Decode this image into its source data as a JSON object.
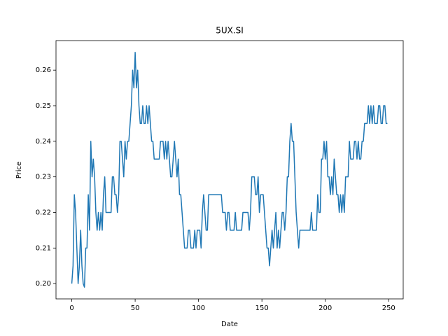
{
  "chart_data": {
    "type": "line",
    "title": "5UX.SI",
    "xlabel": "Date",
    "ylabel": "Price",
    "x": [
      0,
      1,
      2,
      3,
      4,
      5,
      6,
      7,
      8,
      9,
      10,
      11,
      12,
      13,
      14,
      15,
      16,
      17,
      18,
      19,
      20,
      21,
      22,
      23,
      24,
      25,
      26,
      27,
      28,
      29,
      30,
      31,
      32,
      33,
      34,
      35,
      36,
      37,
      38,
      39,
      40,
      41,
      42,
      43,
      44,
      45,
      46,
      47,
      48,
      49,
      50,
      51,
      52,
      53,
      54,
      55,
      56,
      57,
      58,
      59,
      60,
      61,
      62,
      63,
      64,
      65,
      66,
      67,
      68,
      69,
      70,
      71,
      72,
      73,
      74,
      75,
      76,
      77,
      78,
      79,
      80,
      81,
      82,
      83,
      84,
      85,
      86,
      87,
      88,
      89,
      90,
      91,
      92,
      93,
      94,
      95,
      96,
      97,
      98,
      99,
      100,
      101,
      102,
      103,
      104,
      105,
      106,
      107,
      108,
      109,
      110,
      111,
      112,
      113,
      114,
      115,
      116,
      117,
      118,
      119,
      120,
      121,
      122,
      123,
      124,
      125,
      126,
      127,
      128,
      129,
      130,
      131,
      132,
      133,
      134,
      135,
      136,
      137,
      138,
      139,
      140,
      141,
      142,
      143,
      144,
      145,
      146,
      147,
      148,
      149,
      150,
      151,
      152,
      153,
      154,
      155,
      156,
      157,
      158,
      159,
      160,
      161,
      162,
      163,
      164,
      165,
      166,
      167,
      168,
      169,
      170,
      171,
      172,
      173,
      174,
      175,
      176,
      177,
      178,
      179,
      180,
      181,
      182,
      183,
      184,
      185,
      186,
      187,
      188,
      189,
      190,
      191,
      192,
      193,
      194,
      195,
      196,
      197,
      198,
      199,
      200,
      201,
      202,
      203,
      204,
      205,
      206,
      207,
      208,
      209,
      210,
      211,
      212,
      213,
      214,
      215,
      216,
      217,
      218,
      219,
      220,
      221,
      222,
      223,
      224,
      225,
      226,
      227,
      228,
      229,
      230,
      231,
      232,
      233,
      234,
      235,
      236,
      237,
      238,
      239,
      240,
      241,
      242,
      243,
      244,
      245,
      246,
      247,
      248,
      249
    ],
    "series": [
      {
        "color": "#1f77b4",
        "values": [
          0.2,
          0.205,
          0.225,
          0.22,
          0.21,
          0.2,
          0.205,
          0.215,
          0.205,
          0.2,
          0.199,
          0.21,
          0.21,
          0.225,
          0.215,
          0.24,
          0.23,
          0.235,
          0.23,
          0.22,
          0.215,
          0.22,
          0.215,
          0.22,
          0.215,
          0.225,
          0.23,
          0.22,
          0.22,
          0.22,
          0.22,
          0.22,
          0.23,
          0.23,
          0.225,
          0.225,
          0.22,
          0.225,
          0.24,
          0.24,
          0.235,
          0.23,
          0.24,
          0.235,
          0.24,
          0.24,
          0.245,
          0.25,
          0.26,
          0.255,
          0.265,
          0.255,
          0.26,
          0.25,
          0.245,
          0.245,
          0.25,
          0.245,
          0.245,
          0.25,
          0.245,
          0.25,
          0.245,
          0.24,
          0.24,
          0.235,
          0.235,
          0.235,
          0.235,
          0.235,
          0.24,
          0.24,
          0.24,
          0.235,
          0.24,
          0.235,
          0.24,
          0.235,
          0.23,
          0.23,
          0.235,
          0.24,
          0.235,
          0.23,
          0.235,
          0.225,
          0.225,
          0.22,
          0.215,
          0.21,
          0.21,
          0.21,
          0.215,
          0.215,
          0.21,
          0.21,
          0.21,
          0.215,
          0.21,
          0.215,
          0.215,
          0.215,
          0.21,
          0.22,
          0.225,
          0.22,
          0.215,
          0.215,
          0.225,
          0.225,
          0.225,
          0.225,
          0.225,
          0.225,
          0.225,
          0.225,
          0.225,
          0.225,
          0.225,
          0.22,
          0.22,
          0.22,
          0.215,
          0.22,
          0.22,
          0.215,
          0.215,
          0.215,
          0.215,
          0.22,
          0.215,
          0.215,
          0.215,
          0.215,
          0.215,
          0.22,
          0.22,
          0.22,
          0.22,
          0.22,
          0.215,
          0.22,
          0.23,
          0.23,
          0.23,
          0.225,
          0.225,
          0.23,
          0.22,
          0.225,
          0.225,
          0.225,
          0.22,
          0.215,
          0.21,
          0.21,
          0.205,
          0.21,
          0.215,
          0.21,
          0.215,
          0.22,
          0.21,
          0.215,
          0.21,
          0.215,
          0.22,
          0.22,
          0.215,
          0.22,
          0.23,
          0.23,
          0.24,
          0.245,
          0.24,
          0.24,
          0.23,
          0.22,
          0.215,
          0.21,
          0.215,
          0.215,
          0.215,
          0.215,
          0.215,
          0.215,
          0.215,
          0.215,
          0.215,
          0.22,
          0.215,
          0.215,
          0.215,
          0.215,
          0.225,
          0.22,
          0.22,
          0.235,
          0.235,
          0.24,
          0.235,
          0.24,
          0.23,
          0.23,
          0.225,
          0.23,
          0.225,
          0.235,
          0.23,
          0.225,
          0.225,
          0.22,
          0.225,
          0.22,
          0.225,
          0.22,
          0.23,
          0.23,
          0.23,
          0.24,
          0.235,
          0.235,
          0.235,
          0.24,
          0.24,
          0.235,
          0.24,
          0.235,
          0.235,
          0.24,
          0.24,
          0.245,
          0.245,
          0.245,
          0.25,
          0.245,
          0.25,
          0.245,
          0.25,
          0.245,
          0.245,
          0.245,
          0.25,
          0.25,
          0.245,
          0.245,
          0.25,
          0.25,
          0.245,
          0.245
        ]
      }
    ],
    "xlim": [
      -12.45,
      261.45
    ],
    "xticks": [
      0,
      50,
      100,
      150,
      200,
      250
    ],
    "ylim": [
      0.1957,
      0.2683
    ],
    "yticks": [
      {
        "value": 0.2,
        "label": "0.20"
      },
      0.21,
      0.22,
      0.23,
      0.24,
      0.25,
      0.26
    ]
  }
}
